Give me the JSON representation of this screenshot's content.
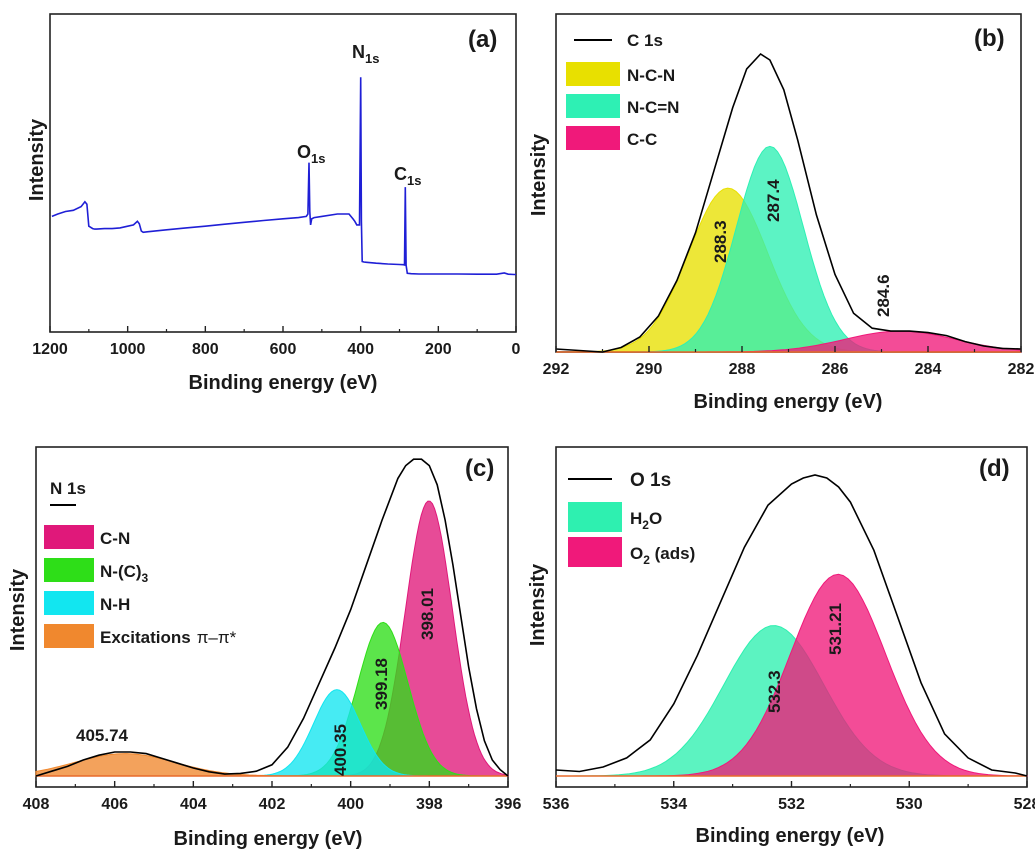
{
  "chart_data": [
    {
      "panel": "(a)",
      "type": "line",
      "xlabel": "Binding energy (eV)",
      "ylabel": "Intensity",
      "xlim": [
        1200,
        0
      ],
      "x_reversed": true,
      "xticks": [
        "1200",
        "1000",
        "800",
        "600",
        "400",
        "200",
        "0"
      ],
      "ylim": [
        0,
        100
      ],
      "y_ticks_shown": false,
      "line_color": "#1f1fd6",
      "series": [
        {
          "x": [
            1195,
            1180,
            1160,
            1140,
            1120,
            1110,
            1105,
            1100,
            1090,
            1085,
            1080,
            1060,
            1040,
            1020,
            1000,
            985,
            975,
            970,
            965,
            960,
            950,
            900,
            850,
            800,
            750,
            700,
            650,
            600,
            560,
            540,
            536,
            533,
            531,
            529,
            526,
            520,
            500,
            460,
            430,
            420,
            415,
            410,
            403,
            400,
            398,
            396,
            392,
            385,
            360,
            330,
            300,
            290,
            287,
            285,
            283,
            280,
            270,
            250,
            200,
            150,
            100,
            50,
            30,
            20,
            5,
            0
          ],
          "y": [
            40,
            41,
            42,
            42.5,
            44,
            46,
            45,
            36,
            35,
            34.8,
            34.8,
            35,
            35,
            35.3,
            36,
            36.5,
            38,
            37,
            34,
            33.5,
            33.7,
            34.5,
            35.3,
            36,
            36.8,
            37.6,
            38.3,
            39,
            39.5,
            40,
            41,
            62,
            42,
            36.5,
            39,
            39.5,
            40,
            41,
            41,
            39,
            38,
            36.5,
            36.5,
            97,
            38,
            21.5,
            21.3,
            21.2,
            20.8,
            20.5,
            20.3,
            20.2,
            20.1,
            52,
            20,
            16.7,
            16.5,
            16.4,
            16.4,
            16.4,
            16.3,
            16.3,
            16.8,
            16.3,
            16.2,
            16.2
          ]
        }
      ],
      "annotations": [
        {
          "text": "O",
          "sub": "1s",
          "x": 531
        },
        {
          "text": "N",
          "sub": "1s",
          "x": 398
        },
        {
          "text": "C",
          "sub": "1s",
          "x": 285
        }
      ]
    },
    {
      "panel": "(b)",
      "type": "area",
      "xlabel": "Binding energy (eV)",
      "ylabel": "Intensity",
      "xlim": [
        292,
        282
      ],
      "x_reversed": true,
      "xticks": [
        "292",
        "290",
        "288",
        "286",
        "284",
        "282"
      ],
      "ylim": [
        0,
        100
      ],
      "y_ticks_shown": false,
      "envelope": {
        "name": "C 1s",
        "color": "#000000",
        "x": [
          292,
          291,
          290.6,
          290.2,
          289.8,
          289.4,
          289,
          288.6,
          288.2,
          287.9,
          287.6,
          287.4,
          287.1,
          286.8,
          286.4,
          286,
          285.6,
          285.2,
          284.8,
          284.4,
          284,
          283.6,
          283.2,
          282.8,
          282.4,
          282
        ],
        "y": [
          1,
          0,
          1.5,
          5,
          12,
          24,
          40,
          61,
          82,
          95,
          100,
          98,
          88,
          71,
          46,
          26,
          13,
          8,
          7,
          7,
          6.5,
          5.5,
          3.5,
          2,
          1.2,
          1
        ]
      },
      "components": [
        {
          "name": "N-C-N",
          "color": "#e8e000",
          "center": 288.3,
          "height": 55,
          "fwhm": 2.0,
          "label": "288.3"
        },
        {
          "name": "N-C=N",
          "color": "#2ef0b4",
          "center": 287.4,
          "height": 69,
          "fwhm": 1.7,
          "label": "287.4"
        },
        {
          "name": "C-C",
          "color": "#f0197a",
          "center": 284.6,
          "height": 7,
          "fwhm": 2.8,
          "label": "284.6"
        }
      ],
      "legend_position": "top-left"
    },
    {
      "panel": "(c)",
      "type": "area",
      "xlabel": "Binding energy (eV)",
      "ylabel": "Intensity",
      "xlim": [
        408,
        396
      ],
      "x_reversed": true,
      "xticks": [
        "408",
        "406",
        "404",
        "402",
        "400",
        "398",
        "396"
      ],
      "ylim": [
        0,
        100
      ],
      "y_ticks_shown": false,
      "envelope": {
        "name": "N 1s",
        "color": "#000000",
        "x": [
          408,
          407.6,
          407.2,
          406.8,
          406.4,
          406,
          405.6,
          405.2,
          404.8,
          404.4,
          404,
          403.6,
          403.2,
          402.8,
          402.4,
          402,
          401.6,
          401.2,
          400.8,
          400.4,
          400,
          399.6,
          399.2,
          398.8,
          398.6,
          398.4,
          398.2,
          398,
          397.8,
          397.6,
          397.4,
          397.2,
          397,
          396.8,
          396.6,
          396.4,
          396.2,
          396
        ],
        "y": [
          0,
          1.5,
          3,
          5,
          6.5,
          7.5,
          7.5,
          7,
          5.5,
          4,
          2.5,
          1.3,
          0.6,
          0.8,
          1.5,
          3.5,
          9,
          18,
          29,
          40,
          52,
          66,
          80,
          93,
          97,
          99,
          99,
          97,
          91,
          80,
          66,
          50,
          34,
          21,
          11,
          5,
          2,
          0
        ]
      },
      "components": [
        {
          "name": "C-N",
          "color": "#e0187a",
          "center": 398.01,
          "height": 86,
          "fwhm": 1.4,
          "label": "398.01"
        },
        {
          "name": "N-(C)3",
          "color": "#2ede18",
          "center": 399.18,
          "height": 48,
          "fwhm": 1.5,
          "label": "399.18"
        },
        {
          "name": "N-H",
          "color": "#12e6f0",
          "center": 400.35,
          "height": 27,
          "fwhm": 1.4,
          "label": "400.35"
        },
        {
          "name": "Excitations π–π*",
          "color": "#f0882e",
          "center": 405.74,
          "height": 7,
          "fwhm": 3.0,
          "label": "405.74"
        }
      ],
      "legend_position": "top-left"
    },
    {
      "panel": "(d)",
      "type": "area",
      "xlabel": "Binding energy (eV)",
      "ylabel": "Intensity",
      "xlim": [
        536,
        528
      ],
      "x_reversed": true,
      "xticks": [
        "536",
        "534",
        "532",
        "530",
        "528"
      ],
      "ylim": [
        0,
        100
      ],
      "y_ticks_shown": false,
      "envelope": {
        "name": "O 1s",
        "color": "#000000",
        "x": [
          536,
          535.6,
          535.2,
          534.8,
          534.4,
          534,
          533.6,
          533.2,
          532.8,
          532.4,
          532,
          531.8,
          531.6,
          531.4,
          531.2,
          531,
          530.6,
          530.2,
          529.8,
          529.4,
          529,
          528.6,
          528.2,
          528
        ],
        "y": [
          2,
          1.5,
          3,
          6,
          12,
          24,
          40,
          58,
          76,
          90,
          97,
          99,
          100,
          99,
          96,
          91,
          75,
          53,
          31,
          14,
          6,
          2,
          1,
          0
        ]
      },
      "components": [
        {
          "name": "H2O",
          "color": "#2ef0b0",
          "center": 532.3,
          "height": 50,
          "fwhm": 2.0,
          "label": "532.3"
        },
        {
          "name": "O2 (ads)",
          "color": "#f0197a",
          "center": 531.21,
          "height": 67,
          "fwhm": 1.9,
          "label": "531.21"
        }
      ],
      "legend_position": "top-left"
    }
  ],
  "texts": {
    "a_tag": "(a)",
    "b_tag": "(b)",
    "c_tag": "(c)",
    "d_tag": "(d)",
    "xlabel": "Binding energy (eV)",
    "ylabel": "Intensity",
    "a_O": "O",
    "a_N": "N",
    "a_C": "C",
    "sub_1s": "1s",
    "b_env": "C 1s",
    "b_l1": "N-C-N",
    "b_l2": "N-C=N",
    "b_l3": "C-C",
    "c_env": "N 1s",
    "c_l1": "C-N",
    "c_l2": "N-(C)",
    "c_l2_sub": "3",
    "c_l3": "N-H",
    "c_l4": "Excitations",
    "c_l4_sym": "π–π*",
    "d_env": "O 1s",
    "d_l1_a": "H",
    "d_l1_sub": "2",
    "d_l1_b": "O",
    "d_l2_a": "O",
    "d_l2_sub": "2",
    "d_l2_b": " (ads)",
    "b_p1": "288.3",
    "b_p2": "287.4",
    "b_p3": "284.6",
    "c_p1": "398.01",
    "c_p2": "399.18",
    "c_p3": "400.35",
    "c_p4": "405.74",
    "d_p1": "532.3",
    "d_p2": "531.21"
  }
}
